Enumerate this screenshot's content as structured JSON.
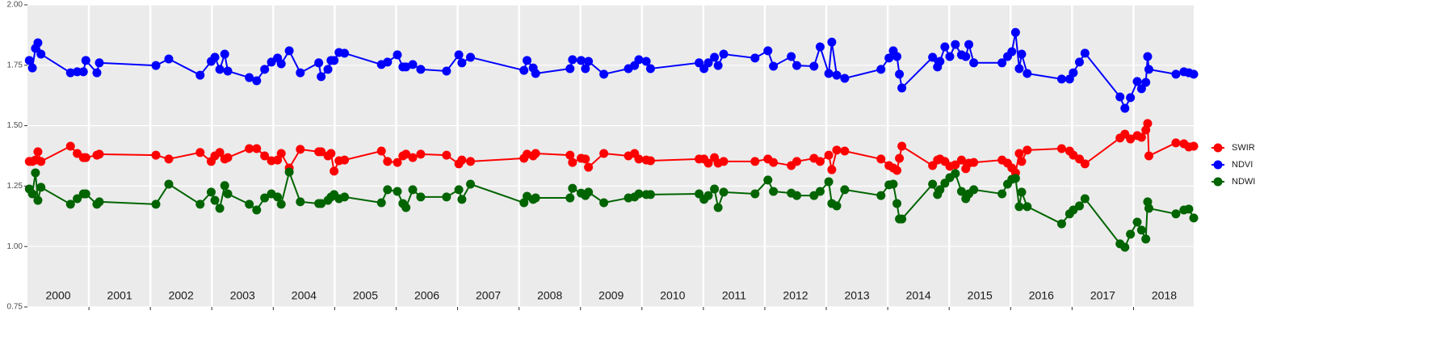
{
  "chart_data": {
    "type": "line",
    "xlim": [
      2000,
      2018.98
    ],
    "ylim": [
      0.75,
      2.0
    ],
    "yticks": [
      0.75,
      {
        "value": 1.0,
        "label": "1.00"
      },
      1.25,
      {
        "value": 1.5,
        "label": "1.50"
      },
      1.75,
      {
        "value": 2.0,
        "label": "2.00"
      }
    ],
    "xticks": [
      {
        "value": 2000.5,
        "label": "2000"
      },
      {
        "value": 2001.5,
        "label": "2001"
      },
      {
        "value": 2002.5,
        "label": "2002"
      },
      {
        "value": 2003.5,
        "label": "2003"
      },
      {
        "value": 2004.5,
        "label": "2004"
      },
      {
        "value": 2005.5,
        "label": "2005"
      },
      {
        "value": 2006.5,
        "label": "2006"
      },
      {
        "value": 2007.5,
        "label": "2007"
      },
      {
        "value": 2008.5,
        "label": "2008"
      },
      {
        "value": 2009.5,
        "label": "2009"
      },
      {
        "value": 2010.5,
        "label": "2010"
      },
      {
        "value": 2011.5,
        "label": "2011"
      },
      {
        "value": 2012.5,
        "label": "2012"
      },
      {
        "value": 2013.5,
        "label": "2013"
      },
      {
        "value": 2014.5,
        "label": "2014"
      },
      {
        "value": 2015.5,
        "label": "2015"
      },
      {
        "value": 2016.5,
        "label": "2016"
      },
      {
        "value": 2017.5,
        "label": "2017"
      },
      {
        "value": 2018.5,
        "label": "2018"
      }
    ],
    "xgrid": [
      2001,
      2002,
      2003,
      2004,
      2005,
      2006,
      2007,
      2008,
      2009,
      2010,
      2011,
      2012,
      2013,
      2014,
      2015,
      2016,
      2017,
      2018
    ],
    "grid": true,
    "legend": "right",
    "x": [
      2000.03,
      2000.08,
      2000.13,
      2000.17,
      2000.22,
      2000.7,
      2000.81,
      2000.91,
      2000.95,
      2001.13,
      2001.17,
      2002.09,
      2002.3,
      2002.81,
      2002.99,
      2003.05,
      2003.13,
      2003.21,
      2003.26,
      2003.61,
      2003.73,
      2003.86,
      2003.97,
      2004.07,
      2004.13,
      2004.26,
      2004.44,
      2004.74,
      2004.78,
      2004.89,
      2004.94,
      2004.99,
      2005.07,
      2005.16,
      2005.76,
      2005.86,
      2006.02,
      2006.11,
      2006.16,
      2006.27,
      2006.4,
      2006.82,
      2007.02,
      2007.07,
      2007.21,
      2008.08,
      2008.13,
      2008.23,
      2008.27,
      2008.83,
      2008.87,
      2009.01,
      2009.08,
      2009.13,
      2009.38,
      2009.78,
      2009.88,
      2009.95,
      2010.07,
      2010.14,
      2010.93,
      2011.01,
      2011.08,
      2011.18,
      2011.24,
      2011.33,
      2011.84,
      2012.05,
      2012.14,
      2012.43,
      2012.52,
      2012.8,
      2012.9,
      2013.04,
      2013.09,
      2013.17,
      2013.3,
      2013.89,
      2014.02,
      2014.09,
      2014.15,
      2014.19,
      2014.23,
      2014.73,
      2014.81,
      2014.85,
      2014.93,
      2015.01,
      2015.1,
      2015.2,
      2015.27,
      2015.32,
      2015.4,
      2015.86,
      2015.95,
      2016.02,
      2016.08,
      2016.14,
      2016.18,
      2016.27,
      2016.83,
      2016.96,
      2017.02,
      2017.12,
      2017.21,
      2017.78,
      2017.86,
      2017.95,
      2018.06,
      2018.13,
      2018.2,
      2018.23,
      2018.25,
      2018.69,
      2018.82,
      2018.9,
      2018.98
    ],
    "series": [
      {
        "name": "SWIR",
        "color": "#ff0000",
        "values": [
          1.352,
          1.352,
          1.358,
          1.392,
          1.352,
          1.415,
          1.385,
          1.368,
          1.368,
          1.378,
          1.382,
          1.378,
          1.362,
          1.389,
          1.352,
          1.375,
          1.389,
          1.362,
          1.368,
          1.405,
          1.405,
          1.375,
          1.355,
          1.358,
          1.385,
          1.325,
          1.402,
          1.392,
          1.392,
          1.375,
          1.385,
          1.312,
          1.355,
          1.358,
          1.395,
          1.352,
          1.348,
          1.375,
          1.382,
          1.368,
          1.382,
          1.378,
          1.342,
          1.358,
          1.352,
          1.365,
          1.382,
          1.375,
          1.385,
          1.378,
          1.348,
          1.365,
          1.362,
          1.328,
          1.385,
          1.375,
          1.385,
          1.362,
          1.358,
          1.355,
          1.362,
          1.362,
          1.345,
          1.368,
          1.345,
          1.352,
          1.352,
          1.362,
          1.348,
          1.335,
          1.352,
          1.365,
          1.352,
          1.378,
          1.318,
          1.399,
          1.395,
          1.362,
          1.335,
          1.325,
          1.315,
          1.365,
          1.415,
          1.335,
          1.358,
          1.362,
          1.352,
          1.332,
          1.338,
          1.358,
          1.322,
          1.345,
          1.348,
          1.358,
          1.345,
          1.325,
          1.305,
          1.385,
          1.352,
          1.399,
          1.405,
          1.395,
          1.378,
          1.362,
          1.342,
          1.449,
          1.465,
          1.445,
          1.459,
          1.452,
          1.482,
          1.509,
          1.375,
          1.429,
          1.425,
          1.412,
          1.415
        ]
      },
      {
        "name": "NDVI",
        "color": "#0000ff",
        "values": [
          1.77,
          1.739,
          1.82,
          1.843,
          1.796,
          1.719,
          1.723,
          1.723,
          1.77,
          1.719,
          1.76,
          1.749,
          1.776,
          1.709,
          1.766,
          1.783,
          1.733,
          1.796,
          1.726,
          1.699,
          1.686,
          1.733,
          1.763,
          1.78,
          1.756,
          1.81,
          1.719,
          1.76,
          1.703,
          1.733,
          1.77,
          1.77,
          1.803,
          1.8,
          1.753,
          1.763,
          1.793,
          1.743,
          1.743,
          1.753,
          1.733,
          1.726,
          1.793,
          1.76,
          1.783,
          1.729,
          1.77,
          1.739,
          1.716,
          1.736,
          1.773,
          1.77,
          1.736,
          1.766,
          1.713,
          1.736,
          1.749,
          1.773,
          1.766,
          1.736,
          1.76,
          1.736,
          1.76,
          1.783,
          1.749,
          1.796,
          1.78,
          1.81,
          1.746,
          1.786,
          1.749,
          1.746,
          1.826,
          1.716,
          1.846,
          1.709,
          1.696,
          1.733,
          1.78,
          1.81,
          1.786,
          1.713,
          1.656,
          1.783,
          1.743,
          1.766,
          1.826,
          1.786,
          1.836,
          1.793,
          1.786,
          1.836,
          1.76,
          1.76,
          1.786,
          1.806,
          1.886,
          1.736,
          1.796,
          1.716,
          1.693,
          1.693,
          1.719,
          1.763,
          1.8,
          1.619,
          1.572,
          1.616,
          1.683,
          1.653,
          1.679,
          1.786,
          1.733,
          1.713,
          1.723,
          1.719,
          1.713
        ]
      },
      {
        "name": "NDWI",
        "color": "#006400",
        "values": [
          1.238,
          1.218,
          1.305,
          1.191,
          1.245,
          1.175,
          1.198,
          1.218,
          1.218,
          1.175,
          1.185,
          1.175,
          1.258,
          1.175,
          1.225,
          1.191,
          1.158,
          1.252,
          1.218,
          1.175,
          1.151,
          1.201,
          1.218,
          1.205,
          1.175,
          1.308,
          1.185,
          1.178,
          1.178,
          1.191,
          1.205,
          1.215,
          1.198,
          1.205,
          1.181,
          1.235,
          1.228,
          1.178,
          1.161,
          1.235,
          1.205,
          1.205,
          1.235,
          1.195,
          1.258,
          1.181,
          1.208,
          1.195,
          1.201,
          1.201,
          1.241,
          1.221,
          1.211,
          1.225,
          1.181,
          1.201,
          1.205,
          1.218,
          1.215,
          1.215,
          1.218,
          1.195,
          1.211,
          1.238,
          1.161,
          1.225,
          1.218,
          1.275,
          1.228,
          1.221,
          1.211,
          1.211,
          1.228,
          1.268,
          1.178,
          1.168,
          1.235,
          1.211,
          1.255,
          1.258,
          1.178,
          1.114,
          1.114,
          1.258,
          1.215,
          1.235,
          1.262,
          1.285,
          1.302,
          1.228,
          1.198,
          1.218,
          1.235,
          1.218,
          1.258,
          1.278,
          1.282,
          1.165,
          1.225,
          1.165,
          1.094,
          1.135,
          1.151,
          1.168,
          1.198,
          1.011,
          0.997,
          1.051,
          1.101,
          1.068,
          1.031,
          1.185,
          1.158,
          1.135,
          1.151,
          1.155,
          1.118
        ]
      }
    ]
  }
}
